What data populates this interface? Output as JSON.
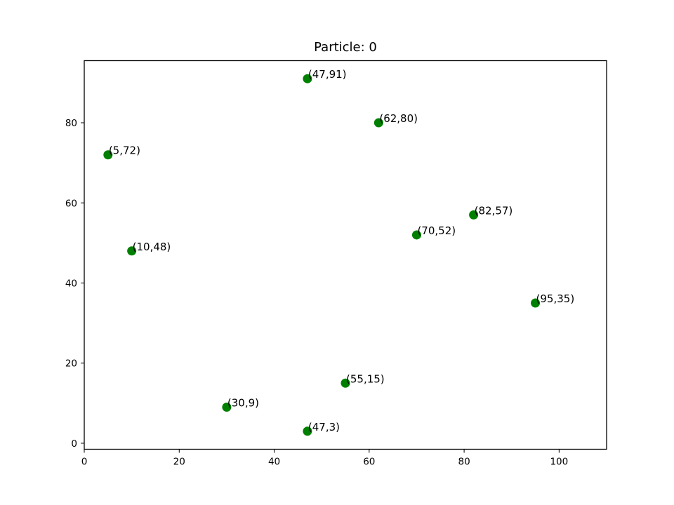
{
  "chart_data": {
    "type": "scatter",
    "title": "Particle: 0",
    "xlabel": "",
    "ylabel": "",
    "xlim": [
      0,
      110
    ],
    "ylim": [
      -1.5,
      95.5
    ],
    "xticks": [
      0,
      20,
      40,
      60,
      80,
      100
    ],
    "yticks": [
      0,
      20,
      40,
      60,
      80
    ],
    "grid": false,
    "marker_color": "#008000",
    "points": [
      {
        "x": 47,
        "y": 91,
        "label": "(47,91)"
      },
      {
        "x": 62,
        "y": 80,
        "label": "(62,80)"
      },
      {
        "x": 5,
        "y": 72,
        "label": "(5,72)"
      },
      {
        "x": 82,
        "y": 57,
        "label": "(82,57)"
      },
      {
        "x": 70,
        "y": 52,
        "label": "(70,52)"
      },
      {
        "x": 10,
        "y": 48,
        "label": "(10,48)"
      },
      {
        "x": 95,
        "y": 35,
        "label": "(95,35)"
      },
      {
        "x": 55,
        "y": 15,
        "label": "(55,15)"
      },
      {
        "x": 30,
        "y": 9,
        "label": "(30,9)"
      },
      {
        "x": 47,
        "y": 3,
        "label": "(47,3)"
      }
    ]
  }
}
